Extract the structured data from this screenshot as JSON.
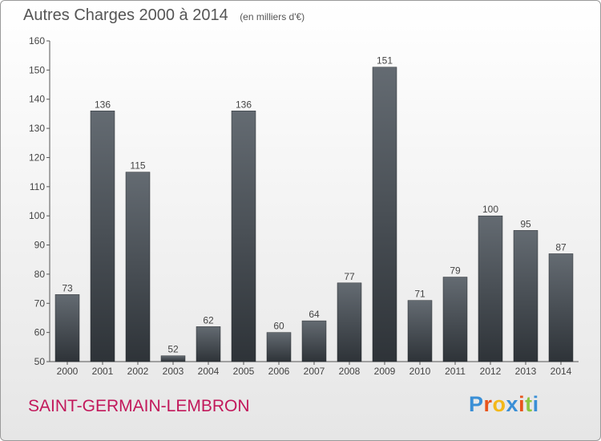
{
  "chart_data": {
    "type": "bar",
    "title": "Autres Charges 2000 à 2014",
    "subtitle": "(en milliers d'€)",
    "categories": [
      "2000",
      "2001",
      "2002",
      "2003",
      "2004",
      "2005",
      "2006",
      "2007",
      "2008",
      "2009",
      "2010",
      "2011",
      "2012",
      "2013",
      "2014"
    ],
    "values": [
      73,
      136,
      115,
      52,
      62,
      136,
      60,
      64,
      77,
      151,
      71,
      79,
      100,
      95,
      87
    ],
    "data_labels": [
      "73",
      "136",
      "115",
      "52",
      "62",
      "136",
      "60",
      "64",
      "77",
      "151",
      "71",
      "79",
      "100",
      "95",
      "87"
    ],
    "yticks": [
      "50",
      "60",
      "70",
      "80",
      "90",
      "100",
      "110",
      "120",
      "130",
      "140",
      "150",
      "160"
    ],
    "ylim": [
      50,
      160
    ],
    "xlabel": "",
    "ylabel": "",
    "grid": false,
    "bar_color": "#4a5057"
  },
  "footer": {
    "city": "SAINT-GERMAIN-LEMBRON",
    "brand": "Proxiti",
    "brand_colors": [
      "#3a8fd6",
      "#e8541c",
      "#f3b81a",
      "#3a8fd6",
      "#e8541c",
      "#8dc63f",
      "#3a8fd6"
    ]
  }
}
